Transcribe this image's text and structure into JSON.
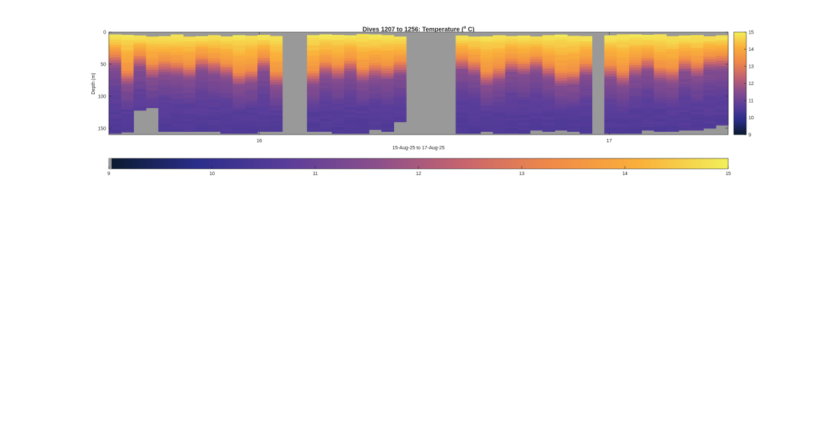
{
  "chart_data": {
    "type": "heatmap",
    "title_prefix": "Dives 1207 to 1256: Temperature (",
    "title_sup": "o",
    "title_suffix": " C)",
    "xlabel": "15-Aug-25 to 17-Aug-25",
    "ylabel": "Depth (m)",
    "x_ticks": [
      "16",
      "17"
    ],
    "y_ticks": [
      "0",
      "50",
      "100",
      "150"
    ],
    "ylim": [
      0,
      160
    ],
    "x_range_days": [
      15.57,
      17.34
    ],
    "clim": [
      9,
      15
    ],
    "colorbar_ticks": [
      "9",
      "10",
      "11",
      "12",
      "13",
      "14",
      "15"
    ],
    "horizontal_colorbar_ticks": [
      "9",
      "10",
      "11",
      "12",
      "13",
      "14",
      "15"
    ],
    "nodata_color": "#999999",
    "colormap": [
      "#0a1a2e",
      "#2a2e8a",
      "#5a3d9a",
      "#8a4e8c",
      "#c7646e",
      "#f08a48",
      "#fab03a",
      "#f2f05a"
    ],
    "data_gaps_days": [
      [
        16.065,
        16.135
      ],
      [
        16.42,
        16.565
      ],
      [
        16.955,
        16.99
      ]
    ],
    "profiles": {
      "note_units": "depth in m; time in days of Aug-2025",
      "dive_count": 50,
      "start_day": 15.57,
      "end_day": 17.34,
      "surface_layer_temp": 15,
      "mixed_layer_depth_range_m": [
        40,
        70
      ],
      "deep_temp": 10.8,
      "max_depth_m": 160,
      "profile_bottom_depths_m": [
        158,
        156,
        122,
        118,
        155,
        155,
        155,
        155,
        155,
        158,
        158,
        158,
        155,
        155,
        158,
        158,
        155,
        155,
        158,
        158,
        158,
        152,
        155,
        140,
        155,
        158,
        158,
        158,
        158,
        158,
        155,
        158,
        158,
        158,
        153,
        155,
        153,
        155,
        158,
        158,
        158,
        158,
        158,
        153,
        155,
        155,
        153,
        153,
        150,
        145
      ]
    }
  }
}
